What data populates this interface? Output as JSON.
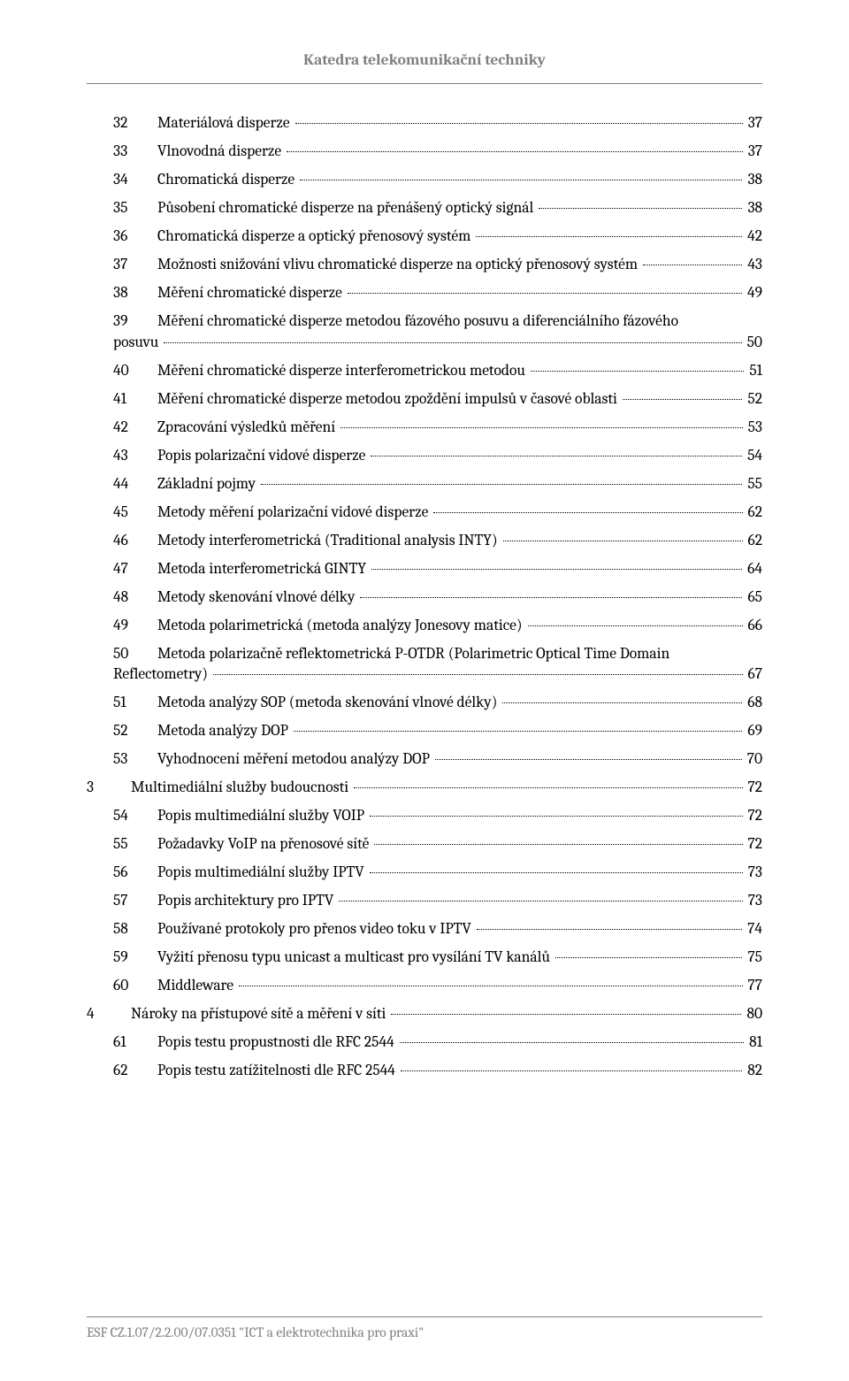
{
  "header": {
    "title": "Katedra telekomunikační techniky"
  },
  "toc": [
    {
      "level": 2,
      "num": "32",
      "title": "Materiálová disperze",
      "page": "37"
    },
    {
      "level": 2,
      "num": "33",
      "title": "Vlnovodná disperze",
      "page": "37"
    },
    {
      "level": 2,
      "num": "34",
      "title": "Chromatická disperze",
      "page": "38"
    },
    {
      "level": 2,
      "num": "35",
      "title": "Působení chromatické disperze na přenášený optický signál",
      "page": "38"
    },
    {
      "level": 2,
      "num": "36",
      "title": "Chromatická disperze a optický přenosový systém",
      "page": "42"
    },
    {
      "level": 2,
      "num": "37",
      "title": "Možnosti snižování vlivu chromatické disperze na optický přenosový systém",
      "page": "43"
    },
    {
      "level": 2,
      "num": "38",
      "title": "Měření chromatické disperze",
      "page": "49"
    },
    {
      "level": 2,
      "num": "39",
      "title": "Měření chromatické disperze metodou fázového posuvu a diferenciálního fázového",
      "wrap": "posuvu",
      "page": "50"
    },
    {
      "level": 2,
      "num": "40",
      "title": "Měření chromatické disperze interferometrickou metodou",
      "page": "51"
    },
    {
      "level": 2,
      "num": "41",
      "title": "Měření chromatické disperze metodou zpoždění impulsů v časové oblasti",
      "page": "52"
    },
    {
      "level": 2,
      "num": "42",
      "title": "Zpracování výsledků měření",
      "page": "53"
    },
    {
      "level": 2,
      "num": "43",
      "title": "Popis polarizační vidové disperze",
      "page": "54"
    },
    {
      "level": 2,
      "num": "44",
      "title": "Základní pojmy",
      "page": "55"
    },
    {
      "level": 2,
      "num": "45",
      "title": "Metody měření polarizační vidové disperze",
      "page": "62"
    },
    {
      "level": 2,
      "num": "46",
      "title": "Metody interferometrická (Traditional analysis INTY)",
      "page": "62"
    },
    {
      "level": 2,
      "num": "47",
      "title": "Metoda interferometrická GINTY",
      "page": "64"
    },
    {
      "level": 2,
      "num": "48",
      "title": "Metody skenování vlnové délky",
      "page": "65"
    },
    {
      "level": 2,
      "num": "49",
      "title": "Metoda polarimetrická (metoda analýzy Jonesovy matice)",
      "page": "66"
    },
    {
      "level": 2,
      "num": "50",
      "title": "Metoda polarizačně reflektometrická P-OTDR (Polarimetric Optical Time Domain",
      "wrap": "Reflectometry)",
      "page": "67"
    },
    {
      "level": 2,
      "num": "51",
      "title": "Metoda analýzy SOP (metoda skenování vlnové délky)",
      "page": "68"
    },
    {
      "level": 2,
      "num": "52",
      "title": "Metoda analýzy DOP",
      "page": "69"
    },
    {
      "level": 2,
      "num": "53",
      "title": "Vyhodnocení měření metodou analýzy DOP",
      "page": "70"
    },
    {
      "level": 1,
      "num": "3",
      "title": "Multimediální služby budoucnosti",
      "page": "72"
    },
    {
      "level": 2,
      "num": "54",
      "title": "Popis multimediální služby VOIP",
      "page": "72"
    },
    {
      "level": 2,
      "num": "55",
      "title": "Požadavky VoIP na přenosové sítě",
      "page": "72"
    },
    {
      "level": 2,
      "num": "56",
      "title": "Popis multimediální služby IPTV",
      "page": "73"
    },
    {
      "level": 2,
      "num": "57",
      "title": "Popis architektury pro  IPTV",
      "page": "73"
    },
    {
      "level": 2,
      "num": "58",
      "title": "Používané protokoly pro přenos video toku v IPTV",
      "page": "74"
    },
    {
      "level": 2,
      "num": "59",
      "title": "Vyžití přenosu typu unicast a multicast pro vysílání TV kanálů",
      "page": "75"
    },
    {
      "level": 2,
      "num": "60",
      "title": "Middleware",
      "page": "77"
    },
    {
      "level": 1,
      "num": "4",
      "title": "Nároky na přístupové sítě a měření v síti",
      "page": "80"
    },
    {
      "level": 2,
      "num": "61",
      "title": "Popis testu propustnosti dle RFC 2544",
      "page": "81"
    },
    {
      "level": 2,
      "num": "62",
      "title": "Popis testu zatížitelnosti dle RFC 2544",
      "page": "82"
    }
  ],
  "footer": {
    "text": "ESF CZ.1.07/2.2.00/07.0351 \"ICT a elektrotechnika pro praxi\""
  }
}
